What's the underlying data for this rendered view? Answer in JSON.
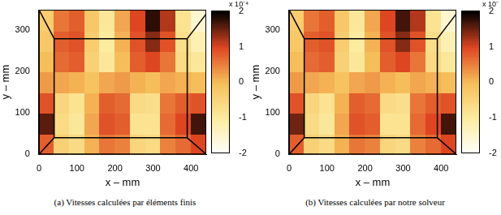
{
  "chart_data": [
    {
      "type": "heatmap",
      "title": "(a) Vitesses calculées par éléments finis",
      "x_label": "x – mm",
      "y_label": "y – mm",
      "xlim": [
        0,
        440
      ],
      "ylim": [
        0,
        350
      ],
      "xticks": [
        0,
        100,
        200,
        300,
        400
      ],
      "yticks": [
        0,
        100,
        200,
        300
      ],
      "x": [
        20,
        60,
        100,
        140,
        180,
        220,
        260,
        300,
        340,
        380,
        420
      ],
      "y": [
        25,
        75,
        125,
        175,
        225,
        275,
        325
      ],
      "cells": [
        [
          0.8,
          -0.4,
          -0.6,
          0.1,
          0.6,
          0.5,
          -0.5,
          -0.6,
          0.5,
          0.7,
          1.0
        ],
        [
          1.6,
          -0.6,
          -0.9,
          0.2,
          0.9,
          0.8,
          -0.8,
          -0.8,
          0.7,
          1.0,
          1.7
        ],
        [
          0.9,
          -0.5,
          -0.8,
          0.1,
          0.8,
          0.7,
          -0.6,
          -0.7,
          0.6,
          0.8,
          0.9
        ],
        [
          0.3,
          0.2,
          0.1,
          -0.1,
          0.2,
          0.3,
          0.1,
          0.0,
          0.2,
          0.1,
          0.0
        ],
        [
          0.0,
          0.7,
          0.8,
          -0.4,
          -0.9,
          0.0,
          0.8,
          1.0,
          0.6,
          -0.6,
          -0.9
        ],
        [
          -0.2,
          0.8,
          0.9,
          -0.3,
          -1.0,
          0.1,
          0.9,
          1.4,
          0.9,
          -0.7,
          -1.2
        ],
        [
          -0.3,
          0.6,
          0.8,
          -0.2,
          -0.9,
          0.2,
          1.0,
          1.8,
          1.2,
          -0.8,
          -1.5
        ]
      ],
      "color_range": [
        -2,
        2
      ],
      "color_ticks": [
        -2,
        -1,
        0,
        1,
        2
      ],
      "color_label": "x 10⁻⁴",
      "outline": [
        [
          40,
          40,
          390,
          40
        ],
        [
          390,
          40,
          390,
          280
        ],
        [
          390,
          280,
          40,
          280
        ],
        [
          40,
          280,
          40,
          40
        ],
        [
          40,
          40,
          0,
          0
        ],
        [
          390,
          40,
          440,
          0
        ],
        [
          390,
          280,
          440,
          340
        ],
        [
          40,
          280,
          0,
          350
        ]
      ]
    },
    {
      "type": "heatmap",
      "title": "(b) Vitesses calculées par notre solveur",
      "x_label": "x – mm",
      "y_label": "y – mm",
      "xlim": [
        0,
        440
      ],
      "ylim": [
        0,
        350
      ],
      "xticks": [
        0,
        100,
        200,
        300,
        400
      ],
      "yticks": [
        0,
        100,
        200,
        300
      ],
      "x": [
        20,
        60,
        100,
        140,
        180,
        220,
        260,
        300,
        340,
        380,
        420
      ],
      "y": [
        25,
        75,
        125,
        175,
        225,
        275,
        325
      ],
      "cells": [
        [
          0.8,
          -0.4,
          -0.6,
          0.1,
          0.6,
          0.5,
          -0.5,
          -0.6,
          0.5,
          0.7,
          1.0
        ],
        [
          1.5,
          -0.6,
          -0.9,
          0.2,
          0.9,
          0.8,
          -0.8,
          -0.8,
          0.7,
          1.0,
          1.7
        ],
        [
          0.9,
          -0.5,
          -0.8,
          0.1,
          0.8,
          0.7,
          -0.6,
          -0.7,
          0.6,
          0.8,
          0.9
        ],
        [
          0.3,
          0.2,
          0.1,
          -0.1,
          0.2,
          0.3,
          0.1,
          0.0,
          0.2,
          0.1,
          0.0
        ],
        [
          0.0,
          0.7,
          0.8,
          -0.4,
          -0.9,
          0.0,
          0.8,
          1.0,
          0.6,
          -0.6,
          -0.9
        ],
        [
          -0.2,
          0.8,
          0.9,
          -0.3,
          -1.0,
          0.1,
          0.9,
          1.4,
          0.9,
          -0.7,
          -1.2
        ],
        [
          -0.3,
          0.6,
          0.8,
          -0.2,
          -0.9,
          0.2,
          1.0,
          1.7,
          1.2,
          -0.8,
          -1.5
        ]
      ],
      "color_range": [
        -2,
        2
      ],
      "color_ticks": [
        -2,
        -1,
        0,
        1,
        2
      ],
      "color_label": "x 10⁻",
      "outline": [
        [
          40,
          40,
          390,
          40
        ],
        [
          390,
          40,
          390,
          280
        ],
        [
          390,
          280,
          40,
          280
        ],
        [
          40,
          280,
          40,
          40
        ],
        [
          40,
          40,
          0,
          0
        ],
        [
          390,
          40,
          440,
          0
        ],
        [
          390,
          280,
          440,
          340
        ],
        [
          40,
          280,
          0,
          350
        ]
      ]
    }
  ]
}
